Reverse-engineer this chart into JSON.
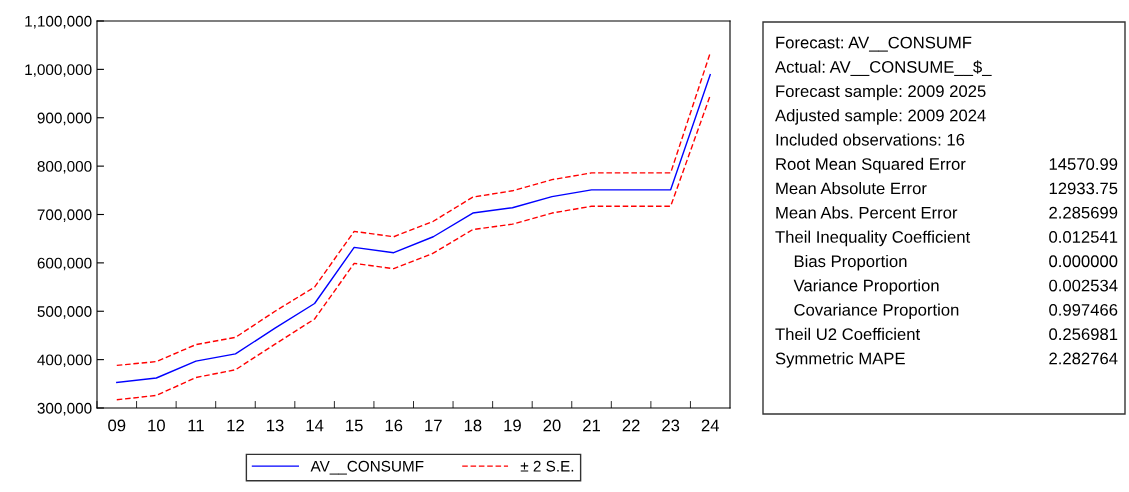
{
  "chart_data": {
    "type": "line",
    "categories": [
      "09",
      "10",
      "11",
      "12",
      "13",
      "14",
      "15",
      "16",
      "17",
      "18",
      "19",
      "20",
      "21",
      "22",
      "23",
      "24"
    ],
    "series": [
      {
        "name": "AV__CONSUMF",
        "color": "#0000ff",
        "line_style": "solid",
        "values": [
          353000,
          362000,
          397000,
          412000,
          465000,
          516000,
          632000,
          621000,
          654000,
          703000,
          714000,
          737000,
          751000,
          751000,
          751000,
          989000
        ]
      },
      {
        "name": "± 2 S.E.",
        "color": "#ff0000",
        "line_style": "dashed",
        "values": [
          388000,
          396000,
          431000,
          446000,
          500000,
          550000,
          665000,
          654000,
          686000,
          736000,
          749000,
          772000,
          786000,
          786000,
          786000,
          1034000
        ]
      },
      {
        "color": "#ff0000",
        "line_style": "dashed",
        "values": [
          317000,
          326000,
          363000,
          379000,
          432000,
          484000,
          599000,
          588000,
          620000,
          669000,
          680000,
          703000,
          717000,
          717000,
          717000,
          946000
        ]
      }
    ],
    "ylim": [
      300000,
      1100000
    ],
    "yticks": [
      {
        "value": 300000,
        "label": "300,000"
      },
      {
        "value": 400000,
        "label": "400,000"
      },
      {
        "value": 500000,
        "label": "500,000"
      },
      {
        "value": 600000,
        "label": "600,000"
      },
      {
        "value": 700000,
        "label": "700,000"
      },
      {
        "value": 800000,
        "label": "800,000"
      },
      {
        "value": 900000,
        "label": "900,000"
      },
      {
        "value": 1000000,
        "label": "1,000,000"
      },
      {
        "value": 1100000,
        "label": "1,100,000"
      }
    ],
    "grid": false,
    "legend": "bottom",
    "marker": "none",
    "annotations": [
      "Forecast: AV__CONSUMF",
      "Actual: AV__CONSUME__$_",
      "Forecast sample: 2009 2025",
      "Adjusted sample: 2009 2024",
      "Included observations: 16",
      "Root Mean Squared Error",
      "14570.99",
      "Mean Absolute Error",
      "12933.75",
      "Mean Abs. Percent Error",
      "2.285699",
      "Theil Inequality Coefficient",
      "0.012541",
      "    Bias Proportion",
      "0.000000",
      "    Variance Proportion",
      "0.002534",
      "    Covariance Proportion",
      "0.997466",
      "Theil U2 Coefficient",
      "0.256981",
      "Symmetric MAPE",
      "2.282764"
    ]
  }
}
